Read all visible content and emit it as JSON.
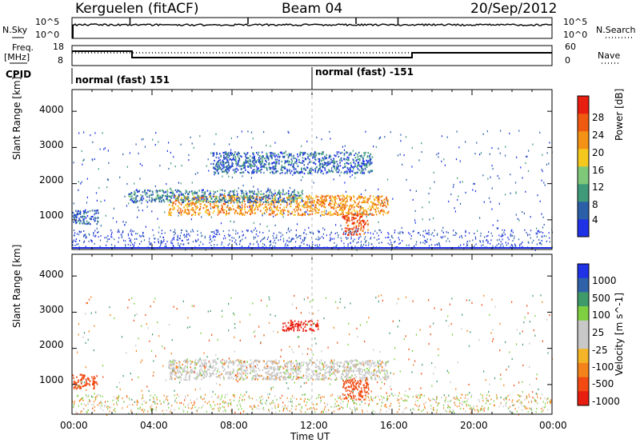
{
  "header": {
    "station": "Kerguelen (fitACF)",
    "beam": "Beam 04",
    "date": "20/Sep/2012"
  },
  "strip_labels": {
    "nsky": "N.Sky",
    "nsky_ticks": [
      "10^5",
      "10^0"
    ],
    "freq": "Freq.",
    "freq_unit": "[MHz]",
    "freq_ticks": [
      "18",
      "8"
    ],
    "cpid": "CPID",
    "nsearch": "N.Search",
    "nsearch_ticks": [
      "10^5",
      "10^0"
    ],
    "nave": "Nave",
    "nave_ticks": [
      "60",
      "0"
    ]
  },
  "cpid": {
    "mode1": "normal (fast) 151",
    "mode2": "normal (fast) -151",
    "switch_time": "12:00"
  },
  "colors": {
    "power_scale": [
      "#1f32e6",
      "#2b5fa8",
      "#3f9a7a",
      "#7fc87a",
      "#f5c81e",
      "#f39214",
      "#ef5a10",
      "#e81e10"
    ],
    "velocity_scale": [
      "#e81e10",
      "#f24a12",
      "#f4821a",
      "#f4b428",
      "#c8c8c8",
      "#c8c8c8",
      "#7fd040",
      "#3f9a6a",
      "#2f62a8",
      "#1f32e6"
    ]
  },
  "chart_data": [
    {
      "type": "heatmap",
      "title": "Power",
      "ylabel": "Slant Range [km]",
      "colorbar_label": "Power [dB]",
      "colorbar_ticks": [
        "4",
        "8",
        "12",
        "16",
        "20",
        "24",
        "28"
      ],
      "y_ticks": [
        "1000",
        "2000",
        "3000",
        "4000"
      ],
      "ylim": [
        180,
        4600
      ],
      "xlim": [
        "00:00",
        "24:00"
      ],
      "features": [
        {
          "name": "main echo band",
          "t_start": 4.8,
          "t_end": 15.8,
          "range_start": 1150,
          "range_end": 1700,
          "power_db": 22
        },
        {
          "name": "upper band",
          "t_start": 2.8,
          "t_end": 11.5,
          "range_start": 1500,
          "range_end": 1850,
          "power_db": 8
        },
        {
          "name": "high layer",
          "t_start": 7.0,
          "t_end": 15.0,
          "range_start": 2300,
          "range_end": 2900,
          "power_db": 6
        },
        {
          "name": "morning patch",
          "t_start": 0.0,
          "t_end": 1.3,
          "range_start": 900,
          "range_end": 1300,
          "power_db": 6
        },
        {
          "name": "afternoon spot",
          "t_start": 13.5,
          "t_end": 14.8,
          "range_start": 600,
          "range_end": 1200,
          "power_db": 26
        }
      ]
    },
    {
      "type": "heatmap",
      "title": "Velocity",
      "ylabel": "Slant Range [km]",
      "colorbar_label": "Velocity [m s^-1]",
      "colorbar_ticks": [
        "1000",
        "500",
        "100",
        "25",
        "-25",
        "-100",
        "-500",
        "-1000"
      ],
      "y_ticks": [
        "1000",
        "2000",
        "3000",
        "4000"
      ],
      "ylim": [
        180,
        4600
      ],
      "xlim": [
        "00:00",
        "24:00"
      ],
      "x_ticks": [
        "00:00",
        "04:00",
        "08:00",
        "12:00",
        "16:00",
        "20:00",
        "00:00"
      ],
      "xlabel": "Time UT",
      "features": [
        {
          "name": "main echo band",
          "t_start": 4.8,
          "t_end": 15.8,
          "range_start": 1150,
          "range_end": 1700,
          "velocity": 0
        },
        {
          "name": "high layer",
          "t_start": 10.5,
          "t_end": 12.3,
          "range_start": 2500,
          "range_end": 2800,
          "velocity": -800
        },
        {
          "name": "morning patch",
          "t_start": 0.0,
          "t_end": 1.3,
          "range_start": 900,
          "range_end": 1300,
          "velocity": -300
        },
        {
          "name": "afternoon spot",
          "t_start": 13.5,
          "t_end": 14.8,
          "range_start": 600,
          "range_end": 1200,
          "velocity": -150
        }
      ]
    }
  ]
}
